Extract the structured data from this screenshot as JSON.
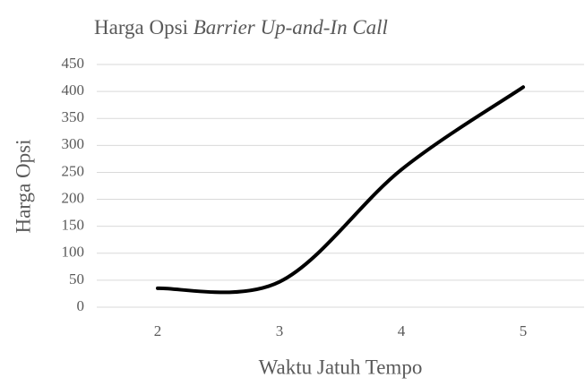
{
  "chart_data": {
    "type": "line",
    "title": "Harga Opsi",
    "title_italic": "Barrier Up-and-In Call",
    "x_label": "Waktu Jatuh Tempo",
    "y_label": "Harga Opsi",
    "categories": [
      "2",
      "3",
      "4",
      "5"
    ],
    "values": [
      35,
      47,
      255,
      408
    ],
    "color": "#000000",
    "smooth": true,
    "ylim": [
      0,
      450
    ],
    "yticks": [
      0,
      50,
      100,
      150,
      200,
      250,
      300,
      350,
      400,
      450
    ],
    "grid": true
  }
}
